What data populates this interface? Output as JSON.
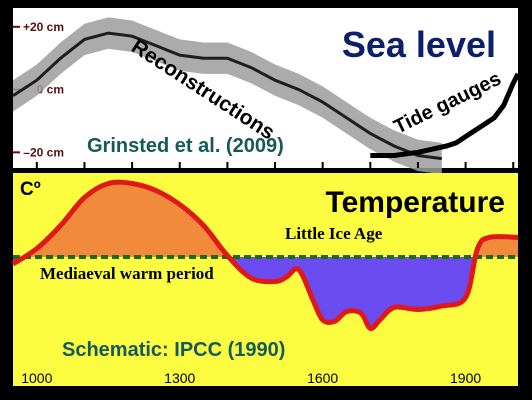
{
  "chart_data": [
    {
      "type": "area",
      "title": "Sea level",
      "y_unit": "cm",
      "y_tick_labels": [
        "+20 cm",
        "0 cm",
        "–20 cm"
      ],
      "y_ticks": [
        20,
        0,
        -20
      ],
      "ylim": [
        -25,
        26
      ],
      "xlim": [
        950,
        2010
      ],
      "grid": false,
      "citation": "Grinsted et al. (2009)",
      "series": [
        {
          "name": "Reconstructions",
          "x": [
            950,
            1000,
            1050,
            1100,
            1150,
            1200,
            1250,
            1300,
            1350,
            1400,
            1450,
            1500,
            1550,
            1600,
            1650,
            1700,
            1750,
            1800,
            1850
          ],
          "values": [
            -2,
            3,
            10,
            16,
            18,
            17,
            14,
            11,
            10,
            10,
            7,
            3,
            0,
            -4,
            -9,
            -14,
            -18,
            -21,
            -22
          ],
          "band": 5
        },
        {
          "name": "Tide gauges",
          "x": [
            1700,
            1750,
            1800,
            1830,
            1860,
            1880,
            1900,
            1920,
            1940,
            1960,
            1980,
            2000,
            2010
          ],
          "values": [
            -21,
            -21,
            -20,
            -19,
            -18,
            -17,
            -15,
            -13,
            -11,
            -9,
            -5,
            2,
            5
          ]
        }
      ]
    },
    {
      "type": "area",
      "title": "Temperature",
      "y_unit": "Cº",
      "x_tick_labels": [
        "1000",
        "1300",
        "1600",
        "1900"
      ],
      "x_ticks": [
        1000,
        1300,
        1600,
        1900
      ],
      "xlim": [
        950,
        2010
      ],
      "grid": false,
      "baseline": 0,
      "baseline_style": "dashed green",
      "fill_above": "#f28a3c",
      "fill_below": "#6a4cf0",
      "line_color": "#e01818",
      "annotations": [
        "Mediaeval warm period",
        "Little Ice Age",
        "Schematic: IPCC (1990)"
      ],
      "x": [
        950,
        1000,
        1050,
        1100,
        1150,
        1200,
        1250,
        1300,
        1350,
        1400,
        1450,
        1500,
        1525,
        1550,
        1580,
        1600,
        1625,
        1650,
        1680,
        1700,
        1720,
        1750,
        1800,
        1850,
        1900,
        1925,
        1950,
        2010
      ],
      "values": [
        -0.1,
        0.12,
        0.45,
        0.85,
        1.05,
        1.05,
        0.95,
        0.75,
        0.45,
        0.02,
        -0.3,
        -0.35,
        -0.28,
        -0.18,
        -0.62,
        -0.9,
        -0.92,
        -0.78,
        -0.8,
        -1.02,
        -0.9,
        -0.72,
        -0.75,
        -0.7,
        -0.58,
        0.12,
        0.28,
        0.28
      ]
    }
  ]
}
